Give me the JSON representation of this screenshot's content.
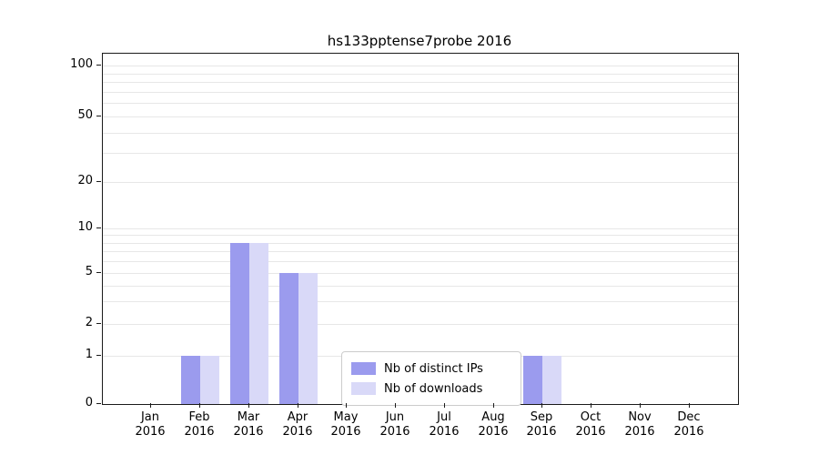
{
  "chart_data": {
    "type": "bar",
    "title": "hs133pptense7probe 2016",
    "categories": [
      "Jan",
      "Feb",
      "Mar",
      "Apr",
      "May",
      "Jun",
      "Jul",
      "Aug",
      "Sep",
      "Oct",
      "Nov",
      "Dec"
    ],
    "year_label": "2016",
    "series": [
      {
        "name": "Nb of distinct IPs",
        "color": "#9b9bee",
        "values": [
          0,
          1,
          8,
          5,
          0,
          0,
          0,
          0,
          1,
          0,
          0,
          0
        ]
      },
      {
        "name": "Nb of downloads",
        "color": "#d9d9f8",
        "values": [
          0,
          1,
          8,
          5,
          0,
          0,
          0,
          0,
          1,
          0,
          0,
          0
        ]
      }
    ],
    "yticks": [
      0,
      1,
      2,
      5,
      10,
      20,
      50,
      100
    ],
    "ylim": [
      0,
      115
    ],
    "y_scale": "symlog",
    "grid": "horizontal-minor",
    "legend_position": "bottom-center"
  }
}
